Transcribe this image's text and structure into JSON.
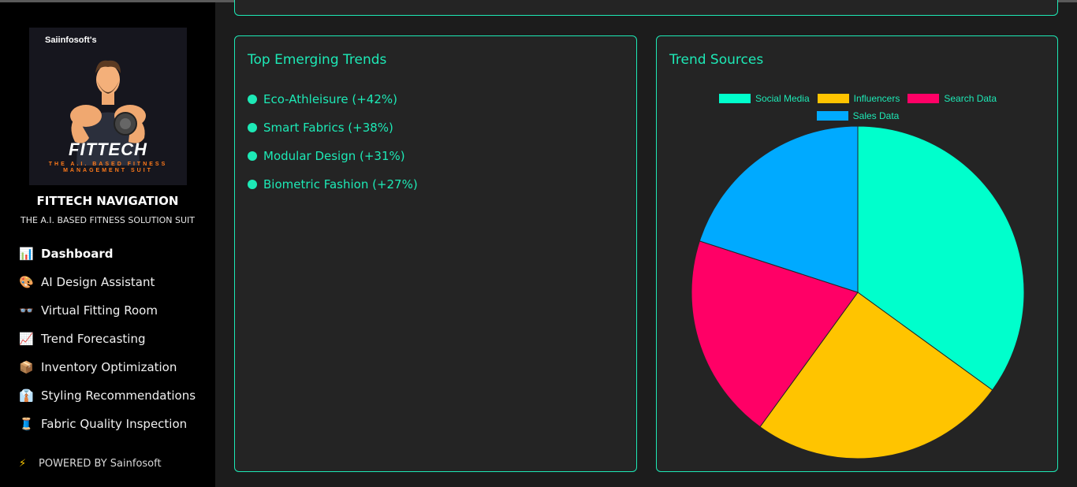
{
  "sidebar": {
    "logo": {
      "top_text": "Saiinfosoft's",
      "brand": "FITTECH",
      "tagline": "THE A.I. BASED FITNESS MANAGEMENT SUIT"
    },
    "title": "FITTECH NAVIGATION",
    "subtitle": "THE A.I. BASED FITNESS SOLUTION SUIT",
    "items": [
      {
        "icon": "📊",
        "icon_name": "bar-chart-icon",
        "label": "Dashboard",
        "active": true
      },
      {
        "icon": "🎨",
        "icon_name": "palette-icon",
        "label": "AI Design Assistant"
      },
      {
        "icon": "👓",
        "icon_name": "glasses-icon",
        "label": "Virtual Fitting Room"
      },
      {
        "icon": "📈",
        "icon_name": "trend-chart-icon",
        "label": "Trend Forecasting"
      },
      {
        "icon": "📦",
        "icon_name": "package-icon",
        "label": "Inventory Optimization"
      },
      {
        "icon": "👔",
        "icon_name": "shirt-icon",
        "label": "Styling Recommendations"
      },
      {
        "icon": "🧵",
        "icon_name": "thread-icon",
        "label": "Fabric Quality Inspection"
      }
    ],
    "powered": {
      "icon": "⚡",
      "icon_name": "lightning-icon",
      "label": "POWERED BY Sainfosoft"
    }
  },
  "trends_card": {
    "title": "Top Emerging Trends",
    "items": [
      "Eco-Athleisure (+42%)",
      "Smart Fabrics (+38%)",
      "Modular Design (+31%)",
      "Biometric Fashion (+27%)"
    ]
  },
  "sources_card": {
    "title": "Trend Sources"
  },
  "chart_data": {
    "type": "pie",
    "title": "",
    "categories": [
      "Social Media",
      "Influencers",
      "Search Data",
      "Sales Data"
    ],
    "values": [
      35,
      25,
      20,
      20
    ],
    "colors": [
      "#00ffcc",
      "#ffc400",
      "#ff0066",
      "#00aaff"
    ],
    "legend": "top"
  },
  "theme": {
    "accent": "#1de9b6",
    "card_bg": "#242424",
    "sidebar_bg": "#000000"
  }
}
